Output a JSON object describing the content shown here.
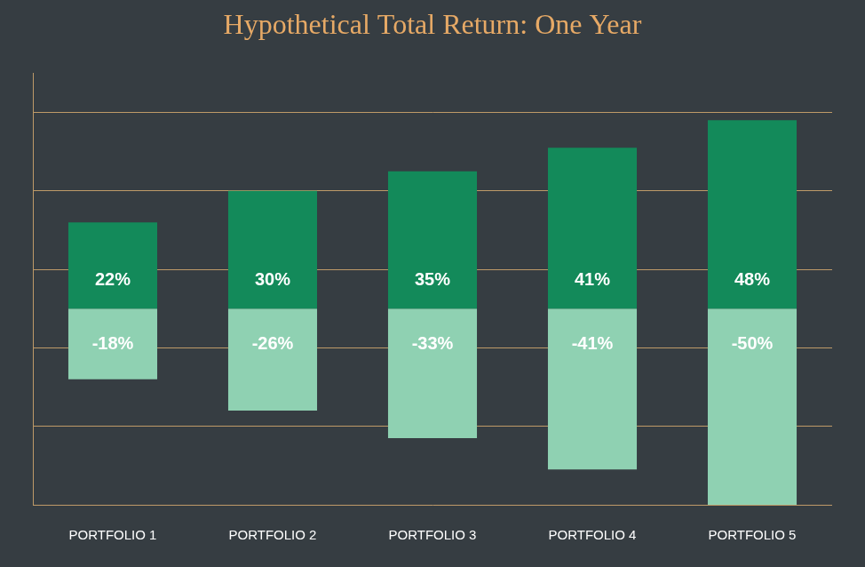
{
  "chart_data": {
    "type": "bar",
    "title": "Hypothetical Total Return: One Year",
    "categories": [
      "PORTFOLIO 1",
      "PORTFOLIO 2",
      "PORTFOLIO 3",
      "PORTFOLIO 4",
      "PORTFOLIO 5"
    ],
    "series": [
      {
        "color": "#138a5a",
        "values": [
          22,
          30,
          35,
          41,
          48
        ],
        "value_labels": [
          "22%",
          "30%",
          "35%",
          "41%",
          "48%"
        ]
      },
      {
        "color": "#8fd1b2",
        "values": [
          -18,
          -26,
          -33,
          -41,
          -50
        ],
        "value_labels": [
          "-18%",
          "-26%",
          "-33%",
          "-41%",
          "-50%"
        ]
      }
    ],
    "stacked": true,
    "data_labels": true,
    "grid": true,
    "tick_labels": "x",
    "ylim": [
      -50,
      60
    ],
    "yticks": [
      -50,
      -30,
      -10,
      10,
      30,
      50
    ]
  }
}
